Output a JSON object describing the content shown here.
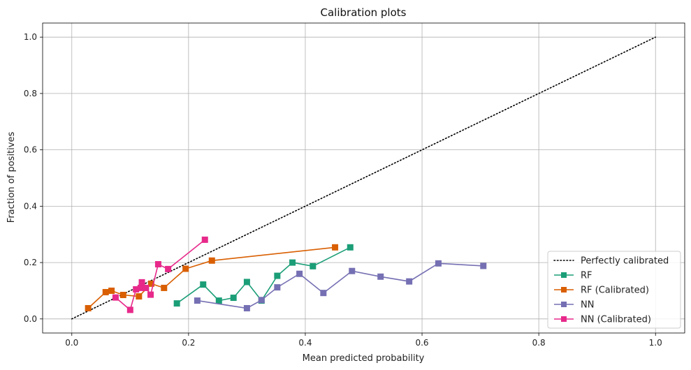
{
  "chart_data": {
    "type": "line",
    "title": "Calibration plots",
    "xlabel": "Mean predicted probability",
    "ylabel": "Fraction of positives",
    "xlim": [
      -0.05,
      1.05
    ],
    "ylim": [
      -0.05,
      1.05
    ],
    "x_ticks": [
      "0.0",
      "0.2",
      "0.4",
      "0.6",
      "0.8",
      "1.0"
    ],
    "y_ticks": [
      "0.0",
      "0.2",
      "0.4",
      "0.6",
      "0.8",
      "1.0"
    ],
    "grid": true,
    "legend_position": "bottom-right",
    "reference_line": {
      "name": "Perfectly calibrated",
      "style": "dotted",
      "color": "#000000",
      "x": [
        0,
        1
      ],
      "y": [
        0,
        1
      ]
    },
    "series": [
      {
        "name": "RF",
        "color": "#1b9e77",
        "marker": "square",
        "x": [
          0.18,
          0.225,
          0.252,
          0.277,
          0.3,
          0.325,
          0.352,
          0.378,
          0.413,
          0.477
        ],
        "y": [
          0.055,
          0.122,
          0.065,
          0.075,
          0.131,
          0.065,
          0.153,
          0.2,
          0.187,
          0.254
        ]
      },
      {
        "name": "RF (Calibrated)",
        "color": "#d95f02",
        "marker": "square",
        "x": [
          0.028,
          0.058,
          0.068,
          0.088,
          0.115,
          0.136,
          0.158,
          0.195,
          0.24,
          0.451
        ],
        "y": [
          0.038,
          0.095,
          0.1,
          0.085,
          0.08,
          0.125,
          0.11,
          0.178,
          0.207,
          0.254
        ]
      },
      {
        "name": "NN",
        "color": "#7570b3",
        "marker": "square",
        "x": [
          0.215,
          0.3,
          0.325,
          0.352,
          0.39,
          0.431,
          0.48,
          0.529,
          0.578,
          0.628,
          0.705
        ],
        "y": [
          0.065,
          0.038,
          0.067,
          0.112,
          0.16,
          0.092,
          0.17,
          0.15,
          0.133,
          0.197,
          0.188
        ]
      },
      {
        "name": "NN (Calibrated)",
        "color": "#e7298a",
        "marker": "square",
        "x": [
          0.075,
          0.1,
          0.11,
          0.118,
          0.12,
          0.127,
          0.135,
          0.148,
          0.165,
          0.228
        ],
        "y": [
          0.076,
          0.032,
          0.105,
          0.11,
          0.13,
          0.11,
          0.086,
          0.194,
          0.177,
          0.281
        ]
      }
    ]
  }
}
